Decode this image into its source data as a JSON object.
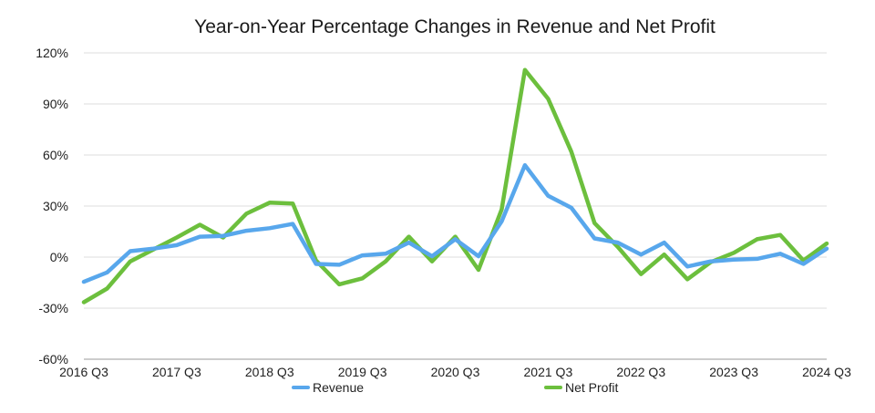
{
  "chart_data": {
    "type": "line",
    "title": "Year-on-Year Percentage Changes in Revenue and Net Profit",
    "xlabel": "",
    "ylabel": "",
    "ylim": [
      -60,
      120
    ],
    "y_ticks": [
      "120%",
      "90%",
      "60%",
      "30%",
      "0%",
      "-30%",
      "-60%"
    ],
    "y_tick_values": [
      120,
      90,
      60,
      30,
      0,
      -30,
      -60
    ],
    "grid": true,
    "legend_position": "bottom",
    "categories": [
      "2016 Q3",
      "2016 Q4",
      "2017 Q1",
      "2017 Q2",
      "2017 Q3",
      "2017 Q4",
      "2018 Q1",
      "2018 Q2",
      "2018 Q3",
      "2018 Q4",
      "2019 Q1",
      "2019 Q2",
      "2019 Q3",
      "2019 Q4",
      "2020 Q1",
      "2020 Q2",
      "2020 Q3",
      "2020 Q4",
      "2021 Q1",
      "2021 Q2",
      "2021 Q3",
      "2021 Q4",
      "2022 Q1",
      "2022 Q2",
      "2022 Q3",
      "2022 Q4",
      "2023 Q1",
      "2023 Q2",
      "2023 Q3",
      "2023 Q4",
      "2024 Q1",
      "2024 Q2",
      "2024 Q3"
    ],
    "x_tick_labels": [
      "2016 Q3",
      "2017 Q3",
      "2018 Q3",
      "2019 Q3",
      "2020 Q3",
      "2021 Q3",
      "2022 Q3",
      "2023 Q3",
      "2024 Q3"
    ],
    "x_tick_indices": [
      0,
      4,
      8,
      12,
      16,
      20,
      24,
      28,
      32
    ],
    "series": [
      {
        "name": "Revenue",
        "color": "#58a7ec",
        "values": [
          -14.5,
          -9,
          3.5,
          5,
          7,
          12,
          12.5,
          15.5,
          17,
          19.5,
          -4,
          -4.5,
          1,
          2,
          8.5,
          0.5,
          10.5,
          0.5,
          21,
          54,
          36,
          29,
          11,
          8.5,
          1.5,
          8.5,
          -5.5,
          -2.5,
          -1.5,
          -1,
          2,
          -4,
          5
        ]
      },
      {
        "name": "Net Profit",
        "color": "#6cbf3d",
        "values": [
          -26.5,
          -18.5,
          -2.5,
          4.5,
          11.5,
          19,
          11.5,
          25.5,
          32,
          31.5,
          -2,
          -16,
          -12.5,
          -2.5,
          12,
          -2.5,
          12,
          -7.5,
          28,
          110,
          93,
          62,
          20,
          6,
          -10,
          1.5,
          -13,
          -3,
          2.5,
          10.5,
          13,
          -2,
          8
        ]
      }
    ]
  }
}
